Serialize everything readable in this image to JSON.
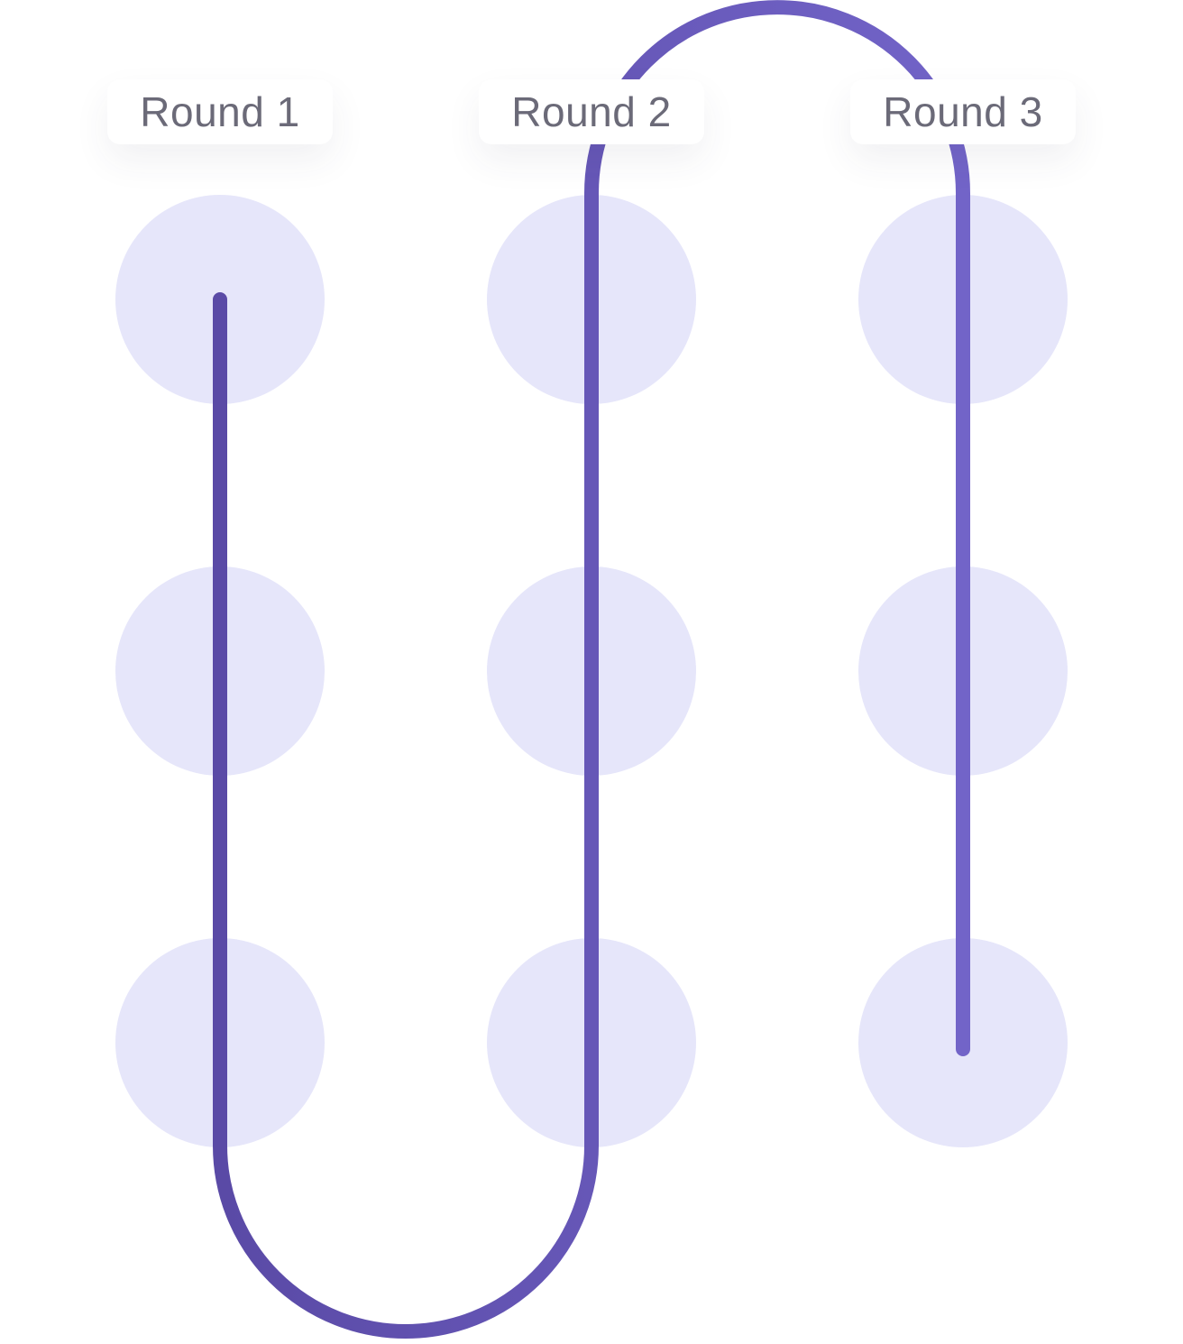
{
  "rounds": [
    {
      "label": "Round 1"
    },
    {
      "label": "Round 2"
    },
    {
      "label": "Round 3"
    }
  ],
  "grid": {
    "rows": 3,
    "columns": 3
  },
  "colors": {
    "node_fill": "#e6e6fa",
    "path_start": "#5a4aa6",
    "path_end": "#7264c8",
    "label_text": "#6b6a78",
    "background": "#ffffff"
  },
  "path": {
    "description": "serpentine path: down column 1, up column 2, down column 3",
    "order": [
      {
        "col": 1,
        "direction": "down"
      },
      {
        "col": 2,
        "direction": "up"
      },
      {
        "col": 3,
        "direction": "down"
      }
    ]
  }
}
